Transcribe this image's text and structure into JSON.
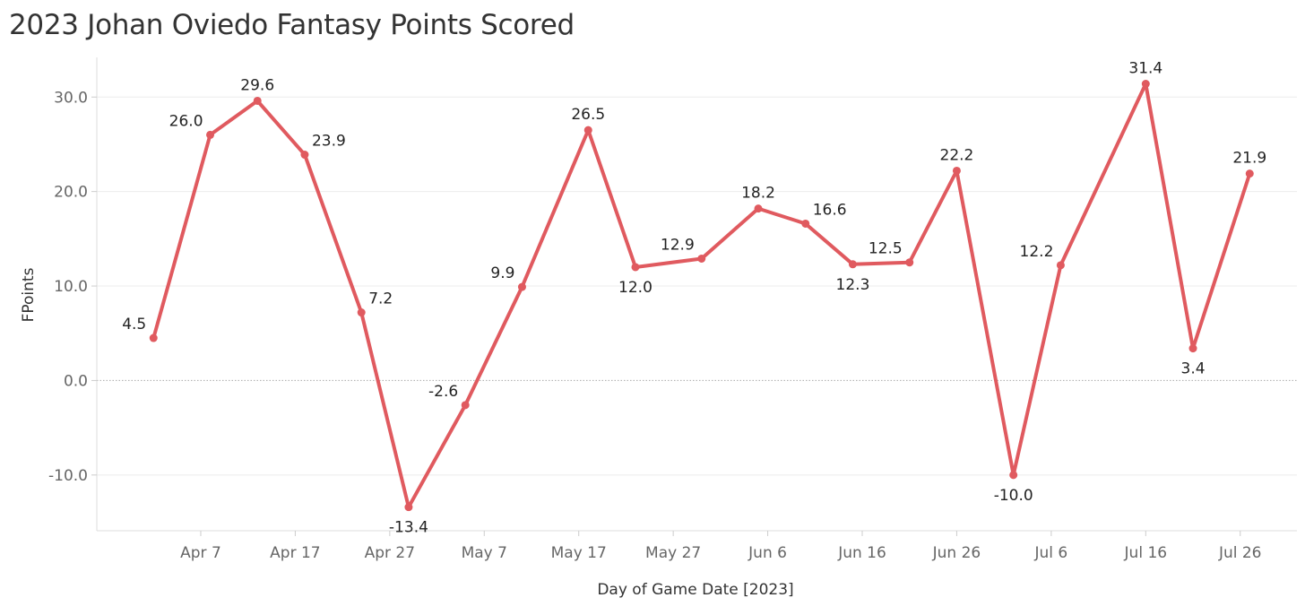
{
  "chart_data": {
    "type": "line",
    "title": "2023 Johan Oviedo Fantasy Points Scored",
    "xlabel": "Day of Game Date [2023]",
    "ylabel": "FPoints",
    "ylim": [
      -15.9,
      34.2
    ],
    "y_ticks": [
      30,
      20,
      10,
      0,
      -10
    ],
    "y_tick_labels": [
      "30.0",
      "20.0",
      "10.0",
      "0.0",
      "-10.0"
    ],
    "x_range": [
      "2023-03-27",
      "2023-08-01"
    ],
    "x_ticks": [
      "2023-04-07",
      "2023-04-17",
      "2023-04-27",
      "2023-05-07",
      "2023-05-17",
      "2023-05-27",
      "2023-06-06",
      "2023-06-16",
      "2023-06-26",
      "2023-07-06",
      "2023-07-16",
      "2023-07-26"
    ],
    "x_tick_labels": [
      "Apr 7",
      "Apr 17",
      "Apr 27",
      "May 7",
      "May 17",
      "May 27",
      "Jun 6",
      "Jun 16",
      "Jun 26",
      "Jul 6",
      "Jul 16",
      "Jul 26"
    ],
    "grid": true,
    "zero_line": "dotted",
    "series": [
      {
        "color": "#e05a5f",
        "points": [
          {
            "x": "2023-04-02",
            "y": 4.5,
            "label": "4.5"
          },
          {
            "x": "2023-04-08",
            "y": 26.0,
            "label": "26.0"
          },
          {
            "x": "2023-04-13",
            "y": 29.6,
            "label": "29.6"
          },
          {
            "x": "2023-04-18",
            "y": 23.9,
            "label": "23.9"
          },
          {
            "x": "2023-04-24",
            "y": 7.2,
            "label": "7.2"
          },
          {
            "x": "2023-04-29",
            "y": -13.4,
            "label": "-13.4"
          },
          {
            "x": "2023-05-05",
            "y": -2.6,
            "label": "-2.6"
          },
          {
            "x": "2023-05-11",
            "y": 9.9,
            "label": "9.9"
          },
          {
            "x": "2023-05-18",
            "y": 26.5,
            "label": "26.5"
          },
          {
            "x": "2023-05-23",
            "y": 12.0,
            "label": "12.0"
          },
          {
            "x": "2023-05-30",
            "y": 12.9,
            "label": "12.9"
          },
          {
            "x": "2023-06-05",
            "y": 18.2,
            "label": "18.2"
          },
          {
            "x": "2023-06-10",
            "y": 16.6,
            "label": "16.6"
          },
          {
            "x": "2023-06-15",
            "y": 12.3,
            "label": "12.3"
          },
          {
            "x": "2023-06-21",
            "y": 12.5,
            "label": "12.5"
          },
          {
            "x": "2023-06-26",
            "y": 22.2,
            "label": "22.2"
          },
          {
            "x": "2023-07-02",
            "y": -10.0,
            "label": "-10.0"
          },
          {
            "x": "2023-07-07",
            "y": 12.2,
            "label": "12.2"
          },
          {
            "x": "2023-07-16",
            "y": 31.4,
            "label": "31.4"
          },
          {
            "x": "2023-07-21",
            "y": 3.4,
            "label": "3.4"
          },
          {
            "x": "2023-07-27",
            "y": 21.9,
            "label": "21.9"
          }
        ]
      }
    ]
  }
}
